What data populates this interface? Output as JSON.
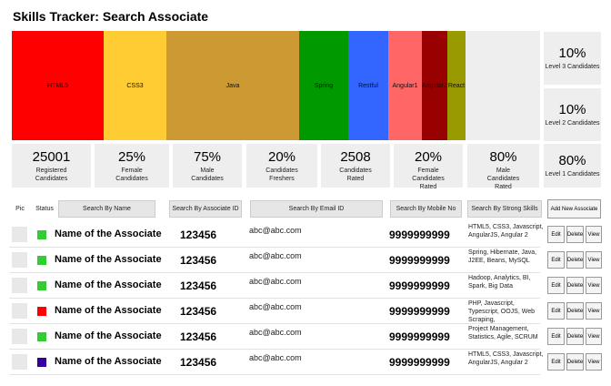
{
  "title": "Skills Tracker: Search Associate",
  "skill_chart": {
    "segments": [
      {
        "label": "HTML5",
        "color": "#ff0000",
        "share": 101
      },
      {
        "label": "CSS3",
        "color": "#ffcc33",
        "share": 69
      },
      {
        "label": "Java",
        "color": "#cc9933",
        "share": 146
      },
      {
        "label": "Spring",
        "color": "#009900",
        "share": 54
      },
      {
        "label": "Restful",
        "color": "#3366ff",
        "share": 44
      },
      {
        "label": "Angular1",
        "color": "#ff6666",
        "share": 37
      },
      {
        "label": "Angular2",
        "color": "#990000",
        "share": 28
      },
      {
        "label": "React",
        "color": "#999900",
        "share": 20
      },
      {
        "label": "",
        "color": "#eeeeee",
        "share": 82
      }
    ]
  },
  "side_stats": [
    {
      "value": "10%",
      "label": "Level 3 Candidates"
    },
    {
      "value": "10%",
      "label": "Level 2 Candidates"
    },
    {
      "value": "80%",
      "label": "Level 1 Candidates"
    }
  ],
  "stats": [
    {
      "value": "25001",
      "line1": "Registered",
      "line2": "Candidates",
      "line3": ""
    },
    {
      "value": "25%",
      "line1": "Female",
      "line2": "Candidates",
      "line3": ""
    },
    {
      "value": "75%",
      "line1": "Male",
      "line2": "Candidates",
      "line3": ""
    },
    {
      "value": "20%",
      "line1": "Candidates",
      "line2": "Freshers",
      "line3": ""
    },
    {
      "value": "2508",
      "line1": "Candidates",
      "line2": "Rated",
      "line3": ""
    },
    {
      "value": "20%",
      "line1": "Female",
      "line2": "Candidates",
      "line3": "Rated"
    },
    {
      "value": "80%",
      "line1": "Male",
      "line2": "Candidates",
      "line3": "Rated"
    }
  ],
  "columns": {
    "pic": "Pic",
    "status": "Status",
    "search_name": "Search By Name",
    "search_id": "Search By Associate ID",
    "search_email": "Search By Email ID",
    "search_mobile": "Search By Mobile No",
    "search_skills": "Search By Strong Skills",
    "add_button": "Add New Associate"
  },
  "actions": {
    "edit": "Edit",
    "delete": "Delete",
    "view": "View"
  },
  "rows": [
    {
      "name": "Name of the Associate",
      "id": "123456",
      "email": "abc@abc.com",
      "mobile": "9999999999",
      "skills": "HTML5, CSS3, Javascript, AngularJS, Angular 2",
      "status_color": "#33cc33"
    },
    {
      "name": "Name of the Associate",
      "id": "123456",
      "email": "abc@abc.com",
      "mobile": "9999999999",
      "skills": "Spring, Hibernate, Java, J2EE, Beans, MySQL",
      "status_color": "#33cc33"
    },
    {
      "name": "Name of the Associate",
      "id": "123456",
      "email": "abc@abc.com",
      "mobile": "9999999999",
      "skills": "Hadoop, Analytics, BI, Spark, Big Data",
      "status_color": "#33cc33"
    },
    {
      "name": "Name of the Associate",
      "id": "123456",
      "email": "abc@abc.com",
      "mobile": "9999999999",
      "skills": "PHP, Javascript, Typescript, OOJS, Web Scraping,",
      "status_color": "#ff0000"
    },
    {
      "name": "Name of the Associate",
      "id": "123456",
      "email": "abc@abc.com",
      "mobile": "9999999999",
      "skills": "Project Management, Statistics, Agile, SCRUM",
      "status_color": "#33cc33"
    },
    {
      "name": "Name of the Associate",
      "id": "123456",
      "email": "abc@abc.com",
      "mobile": "9999999999",
      "skills": "HTML5, CSS3, Javascript, AngularJS, Angular 2",
      "status_color": "#330099"
    }
  ]
}
